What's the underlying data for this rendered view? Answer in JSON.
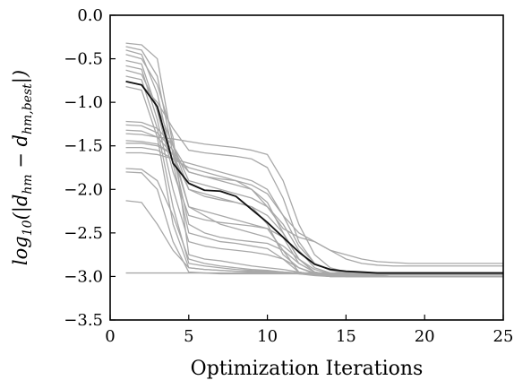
{
  "chart_data": {
    "type": "line",
    "xlabel": "Optimization Iterations",
    "ylabel_parts": {
      "pre": "log",
      "pre_sub": "10",
      "mid": "(|d",
      "sub1": "hm",
      "minus": " − d",
      "sub2": "hm,best",
      "post": "|)"
    },
    "xlim": [
      0,
      25
    ],
    "ylim": [
      -3.5,
      0.0
    ],
    "xticks": [
      0,
      5,
      10,
      15,
      20,
      25
    ],
    "yticks": [
      0.0,
      -0.5,
      -1.0,
      -1.5,
      -2.0,
      -2.5,
      -3.0,
      -3.5
    ],
    "xtick_labels": [
      "0",
      "5",
      "10",
      "15",
      "20",
      "25"
    ],
    "ytick_labels": [
      "0.0",
      "−0.5",
      "−1.0",
      "−1.5",
      "−2.0",
      "−2.5",
      "−3.0",
      "−3.5"
    ],
    "grid": false,
    "colors": {
      "runs": "#a8a8a8",
      "mean": "#111111"
    },
    "x": [
      1,
      2,
      3,
      4,
      5,
      6,
      7,
      8,
      9,
      10,
      11,
      12,
      13,
      14,
      15,
      16,
      17,
      18,
      19,
      20,
      21,
      22,
      23,
      24,
      25
    ],
    "series": [
      {
        "role": "run",
        "values": [
          -0.32,
          -0.34,
          -0.5,
          -1.5,
          -2.0,
          -2.08,
          -2.12,
          -2.15,
          -2.2,
          -2.3,
          -2.5,
          -2.8,
          -2.95,
          -2.98,
          -2.99,
          -3.0,
          -3.0,
          -3.0,
          -3.0,
          -3.0,
          -3.0,
          -3.0,
          -3.0,
          -3.0,
          -3.0
        ]
      },
      {
        "role": "run",
        "values": [
          -0.36,
          -0.4,
          -0.7,
          -1.6,
          -2.2,
          -2.25,
          -2.3,
          -2.35,
          -2.4,
          -2.45,
          -2.7,
          -2.95,
          -2.98,
          -3.0,
          -3.0,
          -3.0,
          -3.0,
          -3.0,
          -3.0,
          -3.0,
          -3.0,
          -3.0,
          -3.0,
          -3.0,
          -3.0
        ]
      },
      {
        "role": "run",
        "values": [
          -0.4,
          -0.45,
          -0.9,
          -1.7,
          -2.5,
          -2.55,
          -2.6,
          -2.62,
          -2.65,
          -2.68,
          -2.8,
          -2.95,
          -2.98,
          -3.0,
          -3.0,
          -3.0,
          -3.0,
          -3.0,
          -3.0,
          -3.0,
          -3.0,
          -3.0,
          -3.0,
          -3.0,
          -3.0
        ]
      },
      {
        "role": "run",
        "values": [
          -0.45,
          -0.5,
          -0.8,
          -1.4,
          -2.75,
          -2.8,
          -2.82,
          -2.85,
          -2.88,
          -2.9,
          -2.92,
          -2.95,
          -2.98,
          -3.0,
          -3.0,
          -3.0,
          -3.0,
          -3.0,
          -3.0,
          -3.0,
          -3.0,
          -3.0,
          -3.0,
          -3.0,
          -3.0
        ]
      },
      {
        "role": "run",
        "values": [
          -0.52,
          -0.56,
          -1.1,
          -1.8,
          -2.3,
          -2.35,
          -2.38,
          -2.4,
          -2.42,
          -2.45,
          -2.55,
          -2.85,
          -2.95,
          -2.98,
          -3.0,
          -3.0,
          -3.0,
          -3.0,
          -3.0,
          -3.0,
          -3.0,
          -3.0,
          -3.0,
          -3.0,
          -3.0
        ]
      },
      {
        "role": "run",
        "values": [
          -0.58,
          -0.62,
          -1.2,
          -2.0,
          -2.6,
          -2.65,
          -2.68,
          -2.7,
          -2.72,
          -2.75,
          -2.8,
          -2.9,
          -2.97,
          -3.0,
          -3.0,
          -3.0,
          -3.0,
          -3.0,
          -3.0,
          -3.0,
          -3.0,
          -3.0,
          -3.0,
          -3.0,
          -3.0
        ]
      },
      {
        "role": "run",
        "values": [
          -0.63,
          -0.68,
          -1.05,
          -1.5,
          -1.9,
          -1.95,
          -2.0,
          -2.05,
          -2.1,
          -2.2,
          -2.4,
          -2.7,
          -2.9,
          -2.96,
          -2.98,
          -2.99,
          -3.0,
          -3.0,
          -3.0,
          -3.0,
          -3.0,
          -3.0,
          -3.0,
          -3.0,
          -3.0
        ]
      },
      {
        "role": "run",
        "values": [
          -0.7,
          -0.74,
          -1.3,
          -2.2,
          -2.85,
          -2.88,
          -2.9,
          -2.92,
          -2.93,
          -2.94,
          -2.95,
          -2.97,
          -2.99,
          -3.0,
          -3.0,
          -3.0,
          -3.0,
          -3.0,
          -3.0,
          -3.0,
          -3.0,
          -3.0,
          -3.0,
          -3.0,
          -3.0
        ]
      },
      {
        "role": "run",
        "values": [
          -0.76,
          -0.8,
          -1.0,
          -1.3,
          -1.55,
          -1.58,
          -1.6,
          -1.62,
          -1.65,
          -1.75,
          -2.1,
          -2.6,
          -2.85,
          -2.92,
          -2.96,
          -2.98,
          -2.99,
          -3.0,
          -3.0,
          -3.0,
          -3.0,
          -3.0,
          -3.0,
          -3.0,
          -3.0
        ]
      },
      {
        "role": "run",
        "values": [
          -0.82,
          -0.86,
          -1.4,
          -2.4,
          -2.9,
          -2.92,
          -2.93,
          -2.94,
          -2.95,
          -2.95,
          -2.96,
          -2.97,
          -2.98,
          -2.99,
          -3.0,
          -3.0,
          -3.0,
          -3.0,
          -3.0,
          -3.0,
          -3.0,
          -3.0,
          -3.0,
          -3.0,
          -3.0
        ]
      },
      {
        "role": "run",
        "values": [
          -1.22,
          -1.23,
          -1.3,
          -1.5,
          -1.8,
          -1.85,
          -1.88,
          -1.9,
          -1.95,
          -2.05,
          -2.3,
          -2.65,
          -2.85,
          -2.93,
          -2.96,
          -2.98,
          -2.99,
          -3.0,
          -3.0,
          -3.0,
          -3.0,
          -3.0,
          -3.0,
          -3.0,
          -3.0
        ]
      },
      {
        "role": "run",
        "values": [
          -1.26,
          -1.27,
          -1.35,
          -1.55,
          -2.2,
          -2.3,
          -2.4,
          -2.45,
          -2.5,
          -2.55,
          -2.65,
          -2.8,
          -2.92,
          -2.97,
          -2.99,
          -3.0,
          -3.0,
          -3.0,
          -3.0,
          -3.0,
          -3.0,
          -3.0,
          -3.0,
          -3.0,
          -3.0
        ]
      },
      {
        "role": "run",
        "values": [
          -1.32,
          -1.33,
          -1.4,
          -1.6,
          -2.0,
          -2.05,
          -2.1,
          -2.15,
          -2.2,
          -2.4,
          -2.75,
          -2.9,
          -2.96,
          -2.98,
          -2.99,
          -3.0,
          -3.0,
          -3.0,
          -3.0,
          -3.0,
          -3.0,
          -3.0,
          -3.0,
          -3.0,
          -3.0
        ]
      },
      {
        "role": "run",
        "values": [
          -1.36,
          -1.37,
          -1.4,
          -1.42,
          -1.45,
          -1.48,
          -1.5,
          -1.52,
          -1.55,
          -1.6,
          -1.9,
          -2.4,
          -2.75,
          -2.9,
          -2.95,
          -2.98,
          -2.99,
          -3.0,
          -3.0,
          -3.0,
          -3.0,
          -3.0,
          -3.0,
          -3.0,
          -3.0
        ]
      },
      {
        "role": "run",
        "values": [
          -1.44,
          -1.45,
          -1.48,
          -1.6,
          -1.8,
          -1.85,
          -1.9,
          -1.95,
          -2.0,
          -2.15,
          -2.5,
          -2.8,
          -2.95,
          -2.98,
          -3.0,
          -3.0,
          -3.0,
          -3.0,
          -3.0,
          -3.0,
          -3.0,
          -3.0,
          -3.0,
          -3.0,
          -3.0
        ]
      },
      {
        "role": "run",
        "values": [
          -1.47,
          -1.47,
          -1.5,
          -1.6,
          -2.4,
          -2.5,
          -2.55,
          -2.58,
          -2.6,
          -2.62,
          -2.7,
          -2.85,
          -2.95,
          -2.98,
          -3.0,
          -3.0,
          -3.0,
          -3.0,
          -3.0,
          -3.0,
          -3.0,
          -3.0,
          -3.0,
          -3.0,
          -3.0
        ]
      },
      {
        "role": "run",
        "values": [
          -1.52,
          -1.52,
          -1.55,
          -1.65,
          -1.75,
          -1.8,
          -1.85,
          -1.9,
          -2.0,
          -2.2,
          -2.45,
          -2.55,
          -2.6,
          -2.7,
          -2.8,
          -2.85,
          -2.87,
          -2.88,
          -2.88,
          -2.88,
          -2.88,
          -2.88,
          -2.88,
          -2.88,
          -2.88
        ]
      },
      {
        "role": "run",
        "values": [
          -1.58,
          -1.58,
          -1.6,
          -1.65,
          -1.7,
          -1.75,
          -1.8,
          -1.85,
          -1.9,
          -2.0,
          -2.3,
          -2.5,
          -2.6,
          -2.7,
          -2.75,
          -2.8,
          -2.83,
          -2.84,
          -2.85,
          -2.85,
          -2.85,
          -2.85,
          -2.85,
          -2.85,
          -2.85
        ]
      },
      {
        "role": "run",
        "values": [
          -1.76,
          -1.77,
          -1.9,
          -2.3,
          -2.8,
          -2.85,
          -2.88,
          -2.9,
          -2.92,
          -2.93,
          -2.95,
          -2.96,
          -2.97,
          -2.98,
          -2.98,
          -2.98,
          -2.98,
          -2.98,
          -2.98,
          -2.98,
          -2.98,
          -2.98,
          -2.98,
          -2.98,
          -2.98
        ]
      },
      {
        "role": "run",
        "values": [
          -1.8,
          -1.81,
          -2.0,
          -2.6,
          -2.95,
          -2.96,
          -2.97,
          -2.97,
          -2.97,
          -2.97,
          -2.97,
          -2.97,
          -2.97,
          -2.97,
          -2.97,
          -2.97,
          -2.97,
          -2.97,
          -2.97,
          -2.97,
          -2.97,
          -2.97,
          -2.97,
          -2.97,
          -2.97
        ]
      },
      {
        "role": "run",
        "values": [
          -2.13,
          -2.15,
          -2.4,
          -2.7,
          -2.9,
          -2.92,
          -2.93,
          -2.94,
          -2.94,
          -2.95,
          -2.95,
          -2.96,
          -2.96,
          -2.96,
          -2.96,
          -2.96,
          -2.96,
          -2.96,
          -2.96,
          -2.96,
          -2.96,
          -2.96,
          -2.96,
          -2.96,
          -2.96
        ]
      },
      {
        "role": "run",
        "values": [
          -2.96,
          -2.96,
          -2.96,
          -2.96,
          -2.96,
          -2.96,
          -2.96,
          -2.96,
          -2.96,
          -2.96,
          -2.96,
          -2.96,
          -2.96,
          -2.96,
          -2.96,
          -2.96,
          -2.96,
          -2.96,
          -2.96,
          -2.96,
          -2.96,
          -2.96,
          -2.96,
          -2.96,
          -2.96
        ]
      },
      {
        "role": "mean",
        "values": [
          -0.76,
          -0.8,
          -1.05,
          -1.7,
          -1.93,
          -2.01,
          -2.02,
          -2.08,
          -2.23,
          -2.38,
          -2.55,
          -2.72,
          -2.86,
          -2.92,
          -2.94,
          -2.95,
          -2.96,
          -2.96,
          -2.96,
          -2.96,
          -2.96,
          -2.96,
          -2.96,
          -2.96,
          -2.96
        ]
      }
    ]
  }
}
